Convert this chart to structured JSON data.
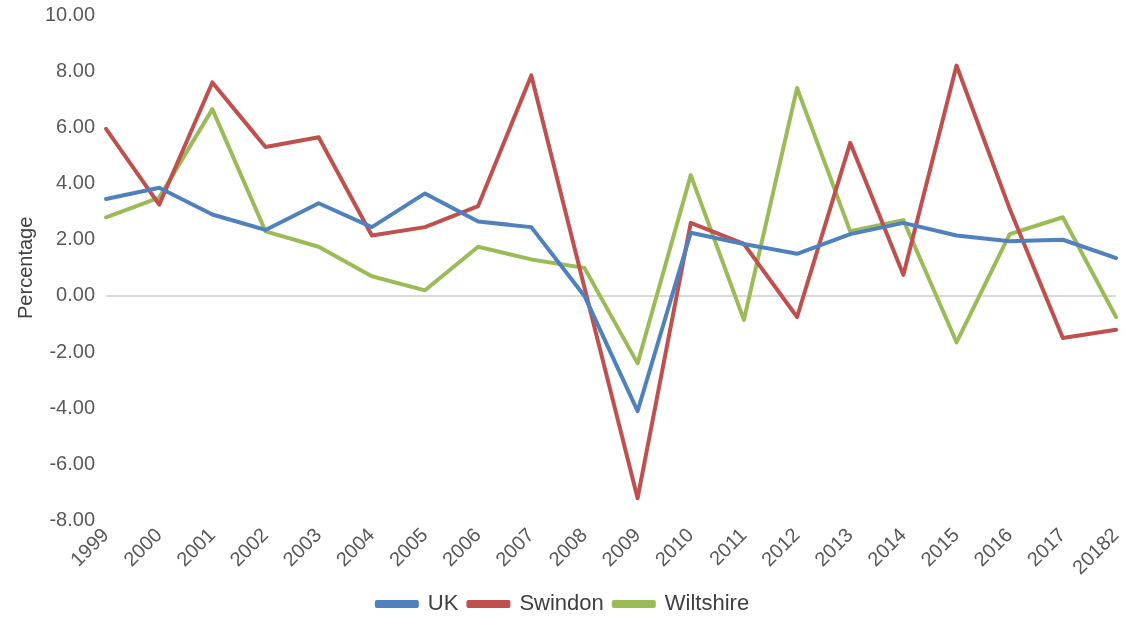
{
  "chart_data": {
    "type": "line",
    "ylabel": "Percentage",
    "categories": [
      "1999",
      "2000",
      "2001",
      "2002",
      "2003",
      "2004",
      "2005",
      "2006",
      "2007",
      "2008",
      "2009",
      "2010",
      "2011",
      "2012",
      "2013",
      "2014",
      "2015",
      "2016",
      "2017",
      "20182"
    ],
    "series": [
      {
        "name": "UK",
        "color": "#4f81bd",
        "values": [
          3.45,
          3.85,
          2.9,
          2.35,
          3.3,
          2.45,
          3.65,
          2.65,
          2.45,
          0.0,
          -4.1,
          2.25,
          1.85,
          1.5,
          2.2,
          2.6,
          2.15,
          1.95,
          2.0,
          1.35
        ]
      },
      {
        "name": "Swindon",
        "color": "#c0504d",
        "values": [
          5.95,
          3.25,
          7.6,
          5.3,
          5.65,
          2.15,
          2.45,
          3.2,
          7.85,
          0.3,
          -7.2,
          2.6,
          1.85,
          -0.75,
          5.45,
          0.75,
          8.2,
          3.1,
          -1.5,
          -1.2
        ]
      },
      {
        "name": "Wiltshire",
        "color": "#9bbb59",
        "values": [
          2.8,
          3.5,
          6.65,
          2.3,
          1.75,
          0.7,
          0.2,
          1.75,
          1.3,
          1.0,
          -2.4,
          4.3,
          -0.85,
          7.4,
          2.3,
          2.7,
          -1.65,
          2.2,
          2.8,
          -0.75
        ]
      }
    ],
    "ylim": [
      -8,
      10
    ],
    "yticks": [
      {
        "value": -8,
        "label": "-8.00"
      },
      {
        "value": -6,
        "label": "-6.00"
      },
      {
        "value": -4,
        "label": "-4.00"
      },
      {
        "value": -2,
        "label": "-2.00"
      },
      {
        "value": 0,
        "label": "0.00"
      },
      {
        "value": 2,
        "label": "2.00"
      },
      {
        "value": 4,
        "label": "4.00"
      },
      {
        "value": 6,
        "label": "6.00"
      },
      {
        "value": 8,
        "label": "8.00"
      },
      {
        "value": 10,
        "label": "10.00"
      }
    ],
    "ref_lines": [
      {
        "axis": "y",
        "value": 0,
        "color": "#d9d9d9",
        "line_style": "solid"
      }
    ],
    "grid": false,
    "legend": "bottom",
    "marker": "none",
    "line_style": "solid"
  }
}
